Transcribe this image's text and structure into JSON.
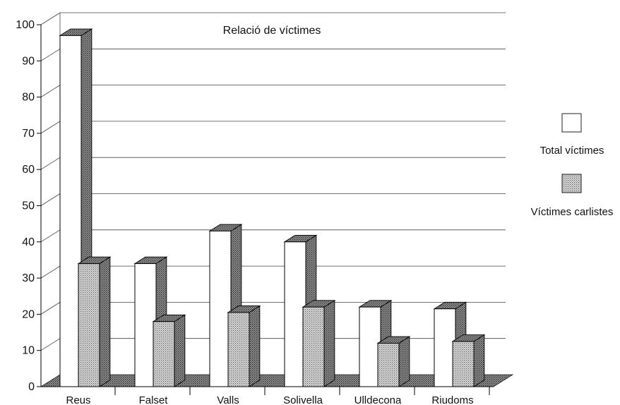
{
  "chart_data": {
    "type": "bar",
    "title": "Relació de víctimes",
    "categories": [
      "Reus",
      "Falset",
      "Valls",
      "Solivella",
      "Ulldecona",
      "Riudoms"
    ],
    "series": [
      {
        "name": "Total víctimes",
        "values": [
          97,
          34,
          43,
          40,
          22,
          21.5
        ]
      },
      {
        "name": "Víctimes carlistes",
        "values": [
          34,
          18,
          20.5,
          22,
          12,
          12.5
        ]
      }
    ],
    "y_ticks": [
      0,
      10,
      20,
      30,
      40,
      50,
      60,
      70,
      80,
      90,
      100
    ],
    "ylim": [
      0,
      100
    ],
    "grid": true,
    "legend_position": "right",
    "colors": {
      "total_fill": "#ffffff",
      "carlist_fill": "#c8c8c8",
      "shade": "#8a8a8a",
      "line": "#000000"
    }
  }
}
